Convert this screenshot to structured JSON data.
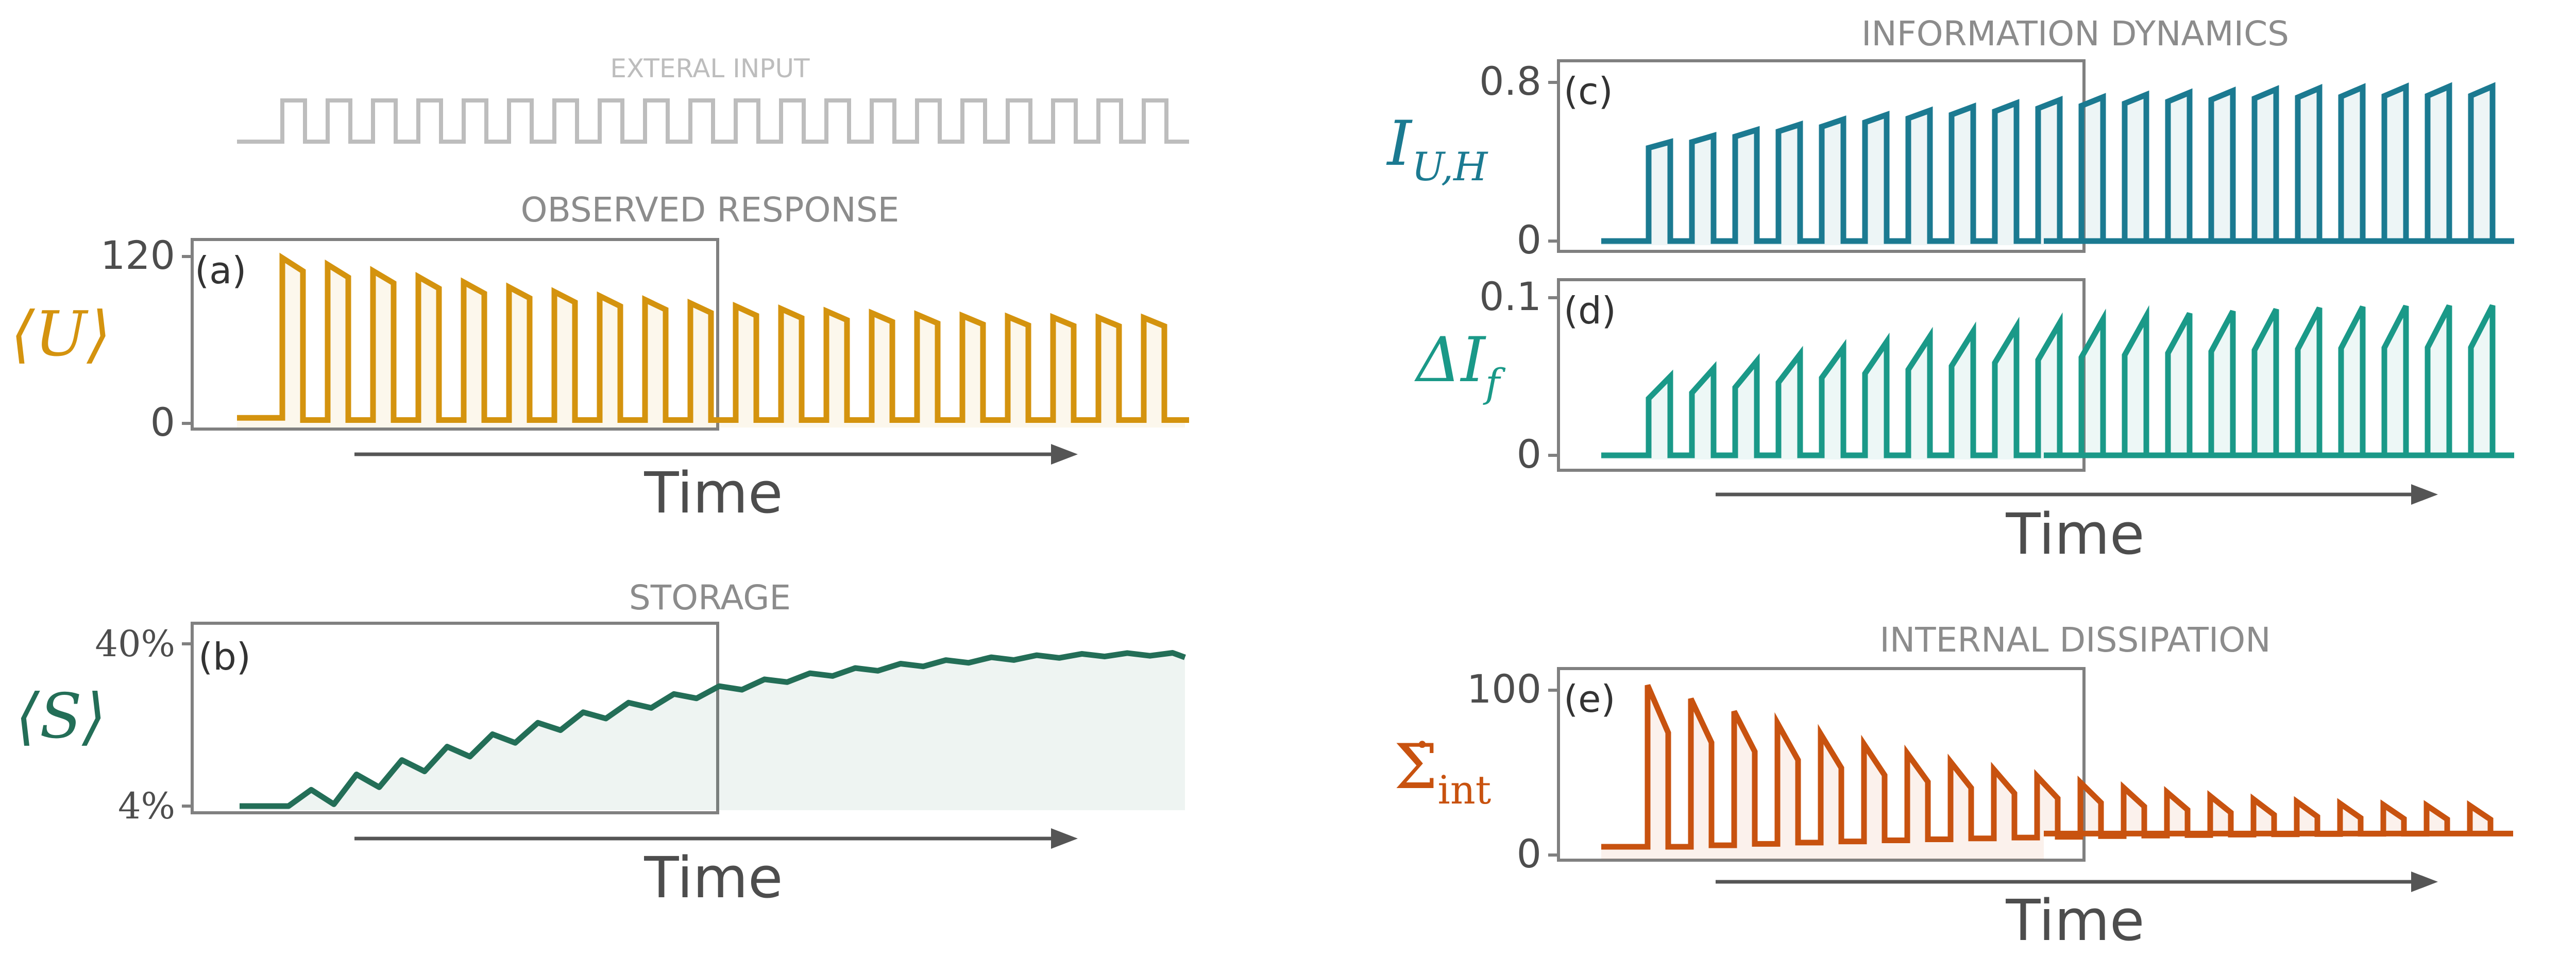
{
  "colors": {
    "axis": "#808080",
    "text": "#4d4d4d",
    "title": "#8c8c8c",
    "input": "#bdbdbd",
    "U": "#d4930e",
    "S": "#236e57",
    "I": "#1b7a91",
    "dI": "#1a9988",
    "sigma": "#c8520f"
  },
  "input_label": "EXTERAL INPUT",
  "chart_data": [
    {
      "id": "a",
      "type": "line",
      "panel_label": "(a)",
      "title": "OBSERVED RESPONSE",
      "ylabel": "⟨U⟩",
      "xlabel": "Time",
      "yticks": [
        "120",
        "0"
      ],
      "ylim": [
        0,
        120
      ],
      "pulse_amplitude_first": 119,
      "pulse_amplitude_final": 76,
      "baseline": 4,
      "pulses": 20
    },
    {
      "id": "b",
      "type": "area",
      "panel_label": "(b)",
      "title": "STORAGE",
      "ylabel": "⟨S⟩",
      "xlabel": "Time",
      "yticks": [
        "40%",
        "4%"
      ],
      "ylim": [
        4,
        40
      ],
      "start_value": 4,
      "final_value": 38,
      "pulses": 20
    },
    {
      "id": "c",
      "type": "line",
      "panel_label": "(c)",
      "title": "INFORMATION DYNAMICS",
      "ylabel": "I_{U,H}",
      "yticks": [
        "0.8",
        "0"
      ],
      "ylim": [
        0,
        0.8
      ],
      "pulse_amplitude_first": 0.5,
      "pulse_amplitude_final": 0.78,
      "pulses": 20
    },
    {
      "id": "d",
      "type": "line",
      "panel_label": "(d)",
      "ylabel": "ΔI_f",
      "xlabel": "Time",
      "yticks": [
        "0.1",
        "0"
      ],
      "ylim": [
        0,
        0.1
      ],
      "pulse_amplitude_first": 0.05,
      "pulse_amplitude_final": 0.095,
      "pulses": 20
    },
    {
      "id": "e",
      "type": "line",
      "panel_label": "(e)",
      "title": "INTERNAL DISSIPATION",
      "ylabel": "Σ̇_int",
      "xlabel": "Time",
      "yticks": [
        "100",
        "0"
      ],
      "ylim": [
        0,
        100
      ],
      "pulse_amplitude_first": 103,
      "pulse_amplitude_final": 30,
      "baseline_first": 5,
      "baseline_final": 13,
      "pulses": 20
    }
  ]
}
